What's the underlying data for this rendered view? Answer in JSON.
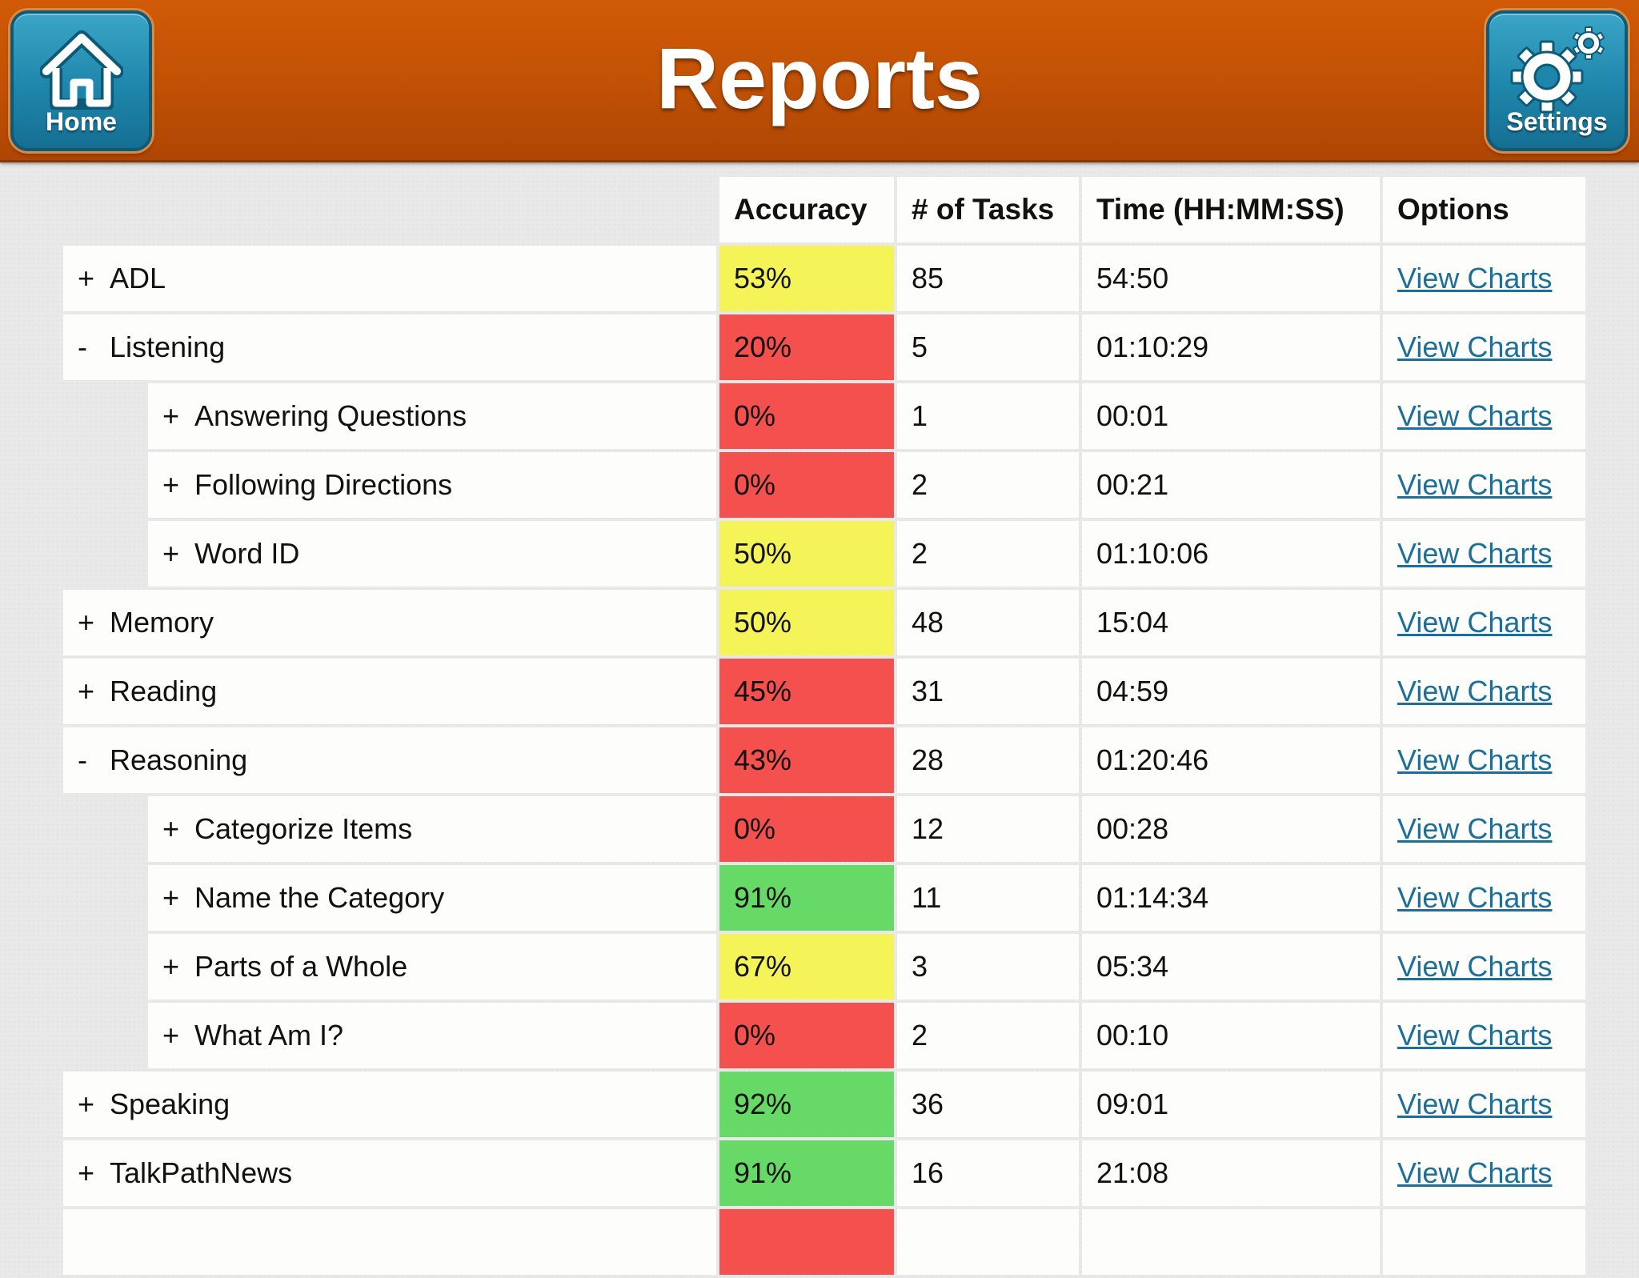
{
  "header": {
    "title": "Reports",
    "home_label": "Home",
    "settings_label": "Settings"
  },
  "table": {
    "columns": [
      "Accuracy",
      "# of Tasks",
      "Time (HH:MM:SS)",
      "Options"
    ],
    "rows": [
      {
        "toggle": "+",
        "name": "ADL",
        "level": 0,
        "accuracy": "53%",
        "accuracy_color": "#f4f458",
        "tasks": "85",
        "time": "54:50",
        "option": "View Charts"
      },
      {
        "toggle": "-",
        "name": "Listening",
        "level": 0,
        "accuracy": "20%",
        "accuracy_color": "#f4504e",
        "tasks": "5",
        "time": "01:10:29",
        "option": "View Charts"
      },
      {
        "toggle": "+",
        "name": "Answering Questions",
        "level": 1,
        "accuracy": "0%",
        "accuracy_color": "#f4504e",
        "tasks": "1",
        "time": "00:01",
        "option": "View Charts"
      },
      {
        "toggle": "+",
        "name": "Following Directions",
        "level": 1,
        "accuracy": "0%",
        "accuracy_color": "#f4504e",
        "tasks": "2",
        "time": "00:21",
        "option": "View Charts"
      },
      {
        "toggle": "+",
        "name": "Word ID",
        "level": 1,
        "accuracy": "50%",
        "accuracy_color": "#f4f458",
        "tasks": "2",
        "time": "01:10:06",
        "option": "View Charts"
      },
      {
        "toggle": "+",
        "name": "Memory",
        "level": 0,
        "accuracy": "50%",
        "accuracy_color": "#f4f458",
        "tasks": "48",
        "time": "15:04",
        "option": "View Charts"
      },
      {
        "toggle": "+",
        "name": "Reading",
        "level": 0,
        "accuracy": "45%",
        "accuracy_color": "#f4504e",
        "tasks": "31",
        "time": "04:59",
        "option": "View Charts"
      },
      {
        "toggle": "-",
        "name": "Reasoning",
        "level": 0,
        "accuracy": "43%",
        "accuracy_color": "#f4504e",
        "tasks": "28",
        "time": "01:20:46",
        "option": "View Charts"
      },
      {
        "toggle": "+",
        "name": "Categorize Items",
        "level": 1,
        "accuracy": "0%",
        "accuracy_color": "#f4504e",
        "tasks": "12",
        "time": "00:28",
        "option": "View Charts"
      },
      {
        "toggle": "+",
        "name": "Name the Category",
        "level": 1,
        "accuracy": "91%",
        "accuracy_color": "#66d966",
        "tasks": "11",
        "time": "01:14:34",
        "option": "View Charts"
      },
      {
        "toggle": "+",
        "name": "Parts of a Whole",
        "level": 1,
        "accuracy": "67%",
        "accuracy_color": "#f4f458",
        "tasks": "3",
        "time": "05:34",
        "option": "View Charts"
      },
      {
        "toggle": "+",
        "name": "What Am I?",
        "level": 1,
        "accuracy": "0%",
        "accuracy_color": "#f4504e",
        "tasks": "2",
        "time": "00:10",
        "option": "View Charts"
      },
      {
        "toggle": "+",
        "name": "Speaking",
        "level": 0,
        "accuracy": "92%",
        "accuracy_color": "#66d966",
        "tasks": "36",
        "time": "09:01",
        "option": "View Charts"
      },
      {
        "toggle": "+",
        "name": "TalkPathNews",
        "level": 0,
        "accuracy": "91%",
        "accuracy_color": "#66d966",
        "tasks": "16",
        "time": "21:08",
        "option": "View Charts"
      },
      {
        "toggle": "",
        "name": "",
        "level": 0,
        "accuracy": "",
        "accuracy_color": "#f4504e",
        "tasks": "",
        "time": "",
        "option": ""
      }
    ]
  }
}
